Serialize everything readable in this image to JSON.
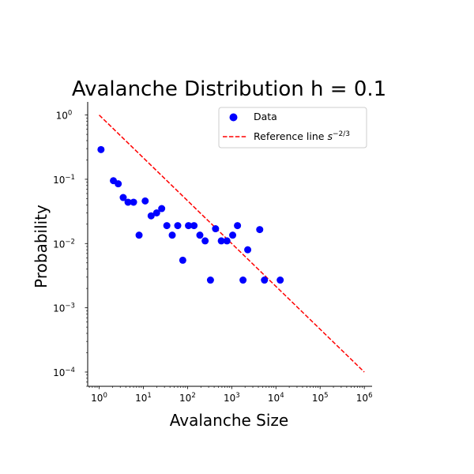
{
  "chart_data": {
    "type": "scatter",
    "title": "Avalanche Distribution h = 0.1",
    "xlabel": "Avalanche Size",
    "ylabel": "Probability",
    "xscale": "log",
    "yscale": "log",
    "xlim": [
      0.55,
      1500000
    ],
    "ylim": [
      6e-05,
      1.6
    ],
    "xticks": [
      1,
      10,
      100,
      1000,
      10000,
      100000,
      1000000
    ],
    "yticks": [
      0.0001,
      0.001,
      0.01,
      0.1,
      1
    ],
    "grid": false,
    "legend_position": "upper-right",
    "series": [
      {
        "name": "Data",
        "kind": "scatter",
        "color": "#0000ff",
        "points": [
          {
            "x": 1.1,
            "y": 0.29
          },
          {
            "x": 2.1,
            "y": 0.095
          },
          {
            "x": 2.7,
            "y": 0.085
          },
          {
            "x": 3.5,
            "y": 0.052
          },
          {
            "x": 4.5,
            "y": 0.044
          },
          {
            "x": 6.0,
            "y": 0.044
          },
          {
            "x": 8.0,
            "y": 0.0135
          },
          {
            "x": 11,
            "y": 0.046
          },
          {
            "x": 15,
            "y": 0.027
          },
          {
            "x": 20,
            "y": 0.03
          },
          {
            "x": 26,
            "y": 0.035
          },
          {
            "x": 34,
            "y": 0.019
          },
          {
            "x": 45,
            "y": 0.0135
          },
          {
            "x": 60,
            "y": 0.019
          },
          {
            "x": 78,
            "y": 0.0055
          },
          {
            "x": 105,
            "y": 0.019
          },
          {
            "x": 140,
            "y": 0.019
          },
          {
            "x": 190,
            "y": 0.0135
          },
          {
            "x": 250,
            "y": 0.011
          },
          {
            "x": 330,
            "y": 0.0027
          },
          {
            "x": 430,
            "y": 0.017
          },
          {
            "x": 580,
            "y": 0.011
          },
          {
            "x": 780,
            "y": 0.011
          },
          {
            "x": 1050,
            "y": 0.0135
          },
          {
            "x": 1350,
            "y": 0.019
          },
          {
            "x": 1800,
            "y": 0.0027
          },
          {
            "x": 2300,
            "y": 0.008
          },
          {
            "x": 4300,
            "y": 0.0165
          },
          {
            "x": 5500,
            "y": 0.0027
          },
          {
            "x": 12500,
            "y": 0.0027
          }
        ]
      },
      {
        "name": "Reference line s^-2/3",
        "kind": "line",
        "style": "dashed",
        "color": "#ff0000",
        "x": [
          1,
          1000000
        ],
        "y": [
          1,
          0.0001
        ]
      }
    ],
    "legend": {
      "entries": [
        {
          "label": "Data"
        },
        {
          "label_main": "Reference line ",
          "label_base": "s",
          "label_sup": "−2/3"
        }
      ]
    }
  }
}
